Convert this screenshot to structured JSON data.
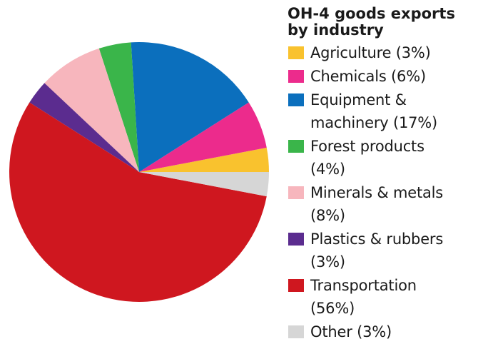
{
  "chart_data": {
    "type": "pie",
    "title": "OH-4 goods exports\nby industry",
    "slices": [
      {
        "label": "Agriculture (3%)",
        "value": 3,
        "color": "#f9c22e"
      },
      {
        "label": "Chemicals (6%)",
        "value": 6,
        "color": "#ec2b8c"
      },
      {
        "label": "Equipment &\nmachinery (17%)",
        "value": 17,
        "color": "#0b6fbd"
      },
      {
        "label": "Forest products\n(4%)",
        "value": 4,
        "color": "#3ab54a"
      },
      {
        "label": "Minerals & metals\n(8%)",
        "value": 8,
        "color": "#f7b6bd"
      },
      {
        "label": "Plastics & rubbers\n(3%)",
        "value": 3,
        "color": "#5b2c8f"
      },
      {
        "label": "Transportation\n(56%)",
        "value": 56,
        "color": "#cf171f"
      },
      {
        "label": "Other (3%)",
        "value": 3,
        "color": "#d6d6d6"
      }
    ],
    "start_angle_deg": 0,
    "direction": "counterclockwise",
    "legend_position": "right"
  }
}
